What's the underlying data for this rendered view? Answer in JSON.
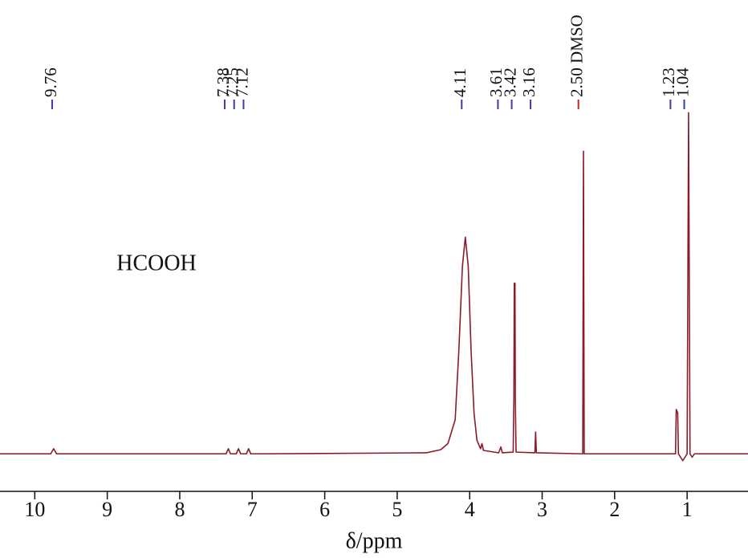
{
  "chart_data": {
    "type": "line",
    "x_label": "δ/ppm",
    "annotation": "HCOOH",
    "color": "#8b1a2a",
    "xlim": [
      10.48,
      0.16
    ],
    "xticks": [
      10,
      9,
      8,
      7,
      6,
      5,
      4,
      3,
      2,
      1
    ],
    "ylim": [
      -11,
      133
    ],
    "peak_labels": [
      {
        "value": 9.76,
        "label": "9.76",
        "color": "#3b3bb0"
      },
      {
        "value": 7.38,
        "label": "7.38",
        "color": "#3b3bb0"
      },
      {
        "value": 7.25,
        "label": "7.25",
        "color": "#3b3bb0"
      },
      {
        "value": 7.12,
        "label": "7.12",
        "color": "#3b3bb0"
      },
      {
        "value": 4.11,
        "label": "4.11",
        "color": "#3b3bb0"
      },
      {
        "value": 3.61,
        "label": "3.61",
        "color": "#3b3bb0"
      },
      {
        "value": 3.42,
        "label": "3.42",
        "color": "#3b3bb0"
      },
      {
        "value": 3.16,
        "label": "3.16",
        "color": "#3b3bb0"
      },
      {
        "value": 2.5,
        "label": "2.50 DMSO",
        "color": "#d02020"
      },
      {
        "value": 1.23,
        "label": "1.23",
        "color": "#3b3bb0"
      },
      {
        "value": 1.04,
        "label": "1.04",
        "color": "#3b3bb0"
      }
    ],
    "x": [
      10.48,
      9.78,
      9.74,
      9.7,
      7.36,
      7.33,
      7.3,
      7.22,
      7.19,
      7.16,
      7.08,
      7.05,
      7.02,
      6.9,
      4.6,
      4.4,
      4.3,
      4.2,
      4.15,
      4.1,
      4.06,
      4.02,
      3.98,
      3.94,
      3.9,
      3.85,
      3.83,
      3.81,
      3.6,
      3.57,
      3.55,
      3.4,
      3.39,
      3.385,
      3.375,
      3.37,
      3.36,
      3.1,
      3.09,
      3.08,
      2.44,
      2.43,
      2.42,
      1.16,
      1.15,
      1.13,
      1.12,
      1.06,
      1.0,
      0.99,
      0.98,
      0.97,
      0.96,
      0.93,
      0.9,
      0.16
    ],
    "values": [
      0,
      0,
      1.5,
      0,
      0,
      1.5,
      0,
      0,
      1.5,
      0,
      0,
      1.5,
      0,
      0,
      0.3,
      1.2,
      3,
      10,
      30,
      55,
      63.5,
      55,
      30,
      12,
      4,
      1.5,
      3,
      1,
      0.3,
      2,
      0.3,
      0.5,
      16,
      50,
      50,
      16,
      0.5,
      0.3,
      6.4,
      0.3,
      0,
      88.7,
      0,
      0,
      13,
      12,
      0,
      -2,
      0,
      50,
      100,
      50,
      0,
      -1,
      0,
      0
    ]
  }
}
